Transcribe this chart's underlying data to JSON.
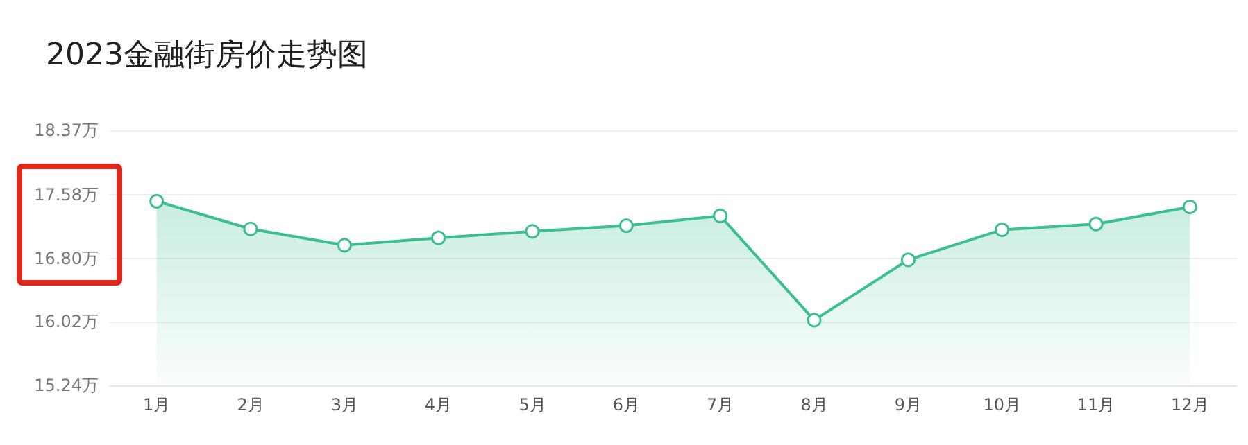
{
  "chart_data": {
    "type": "area",
    "title": "2023金融街房价走势图",
    "categories": [
      "1月",
      "2月",
      "3月",
      "4月",
      "5月",
      "6月",
      "7月",
      "8月",
      "9月",
      "10月",
      "11月",
      "12月"
    ],
    "series": [
      {
        "color": "#3cbf8e",
        "values": [
          17.5,
          17.16,
          16.96,
          17.05,
          17.13,
          17.2,
          17.32,
          16.04,
          16.78,
          17.15,
          17.22,
          17.43
        ]
      }
    ],
    "ylim": [
      15.24,
      18.37
    ],
    "yticks": [
      {
        "value": 15.24,
        "label": "15.24万"
      },
      {
        "value": 16.02,
        "label": "16.02万"
      },
      {
        "value": 16.8,
        "label": "16.80万"
      },
      {
        "value": 17.58,
        "label": "17.58万"
      },
      {
        "value": 18.37,
        "label": "18.37万"
      }
    ],
    "grid": "y",
    "marker": "circle",
    "line_style": "solid"
  }
}
